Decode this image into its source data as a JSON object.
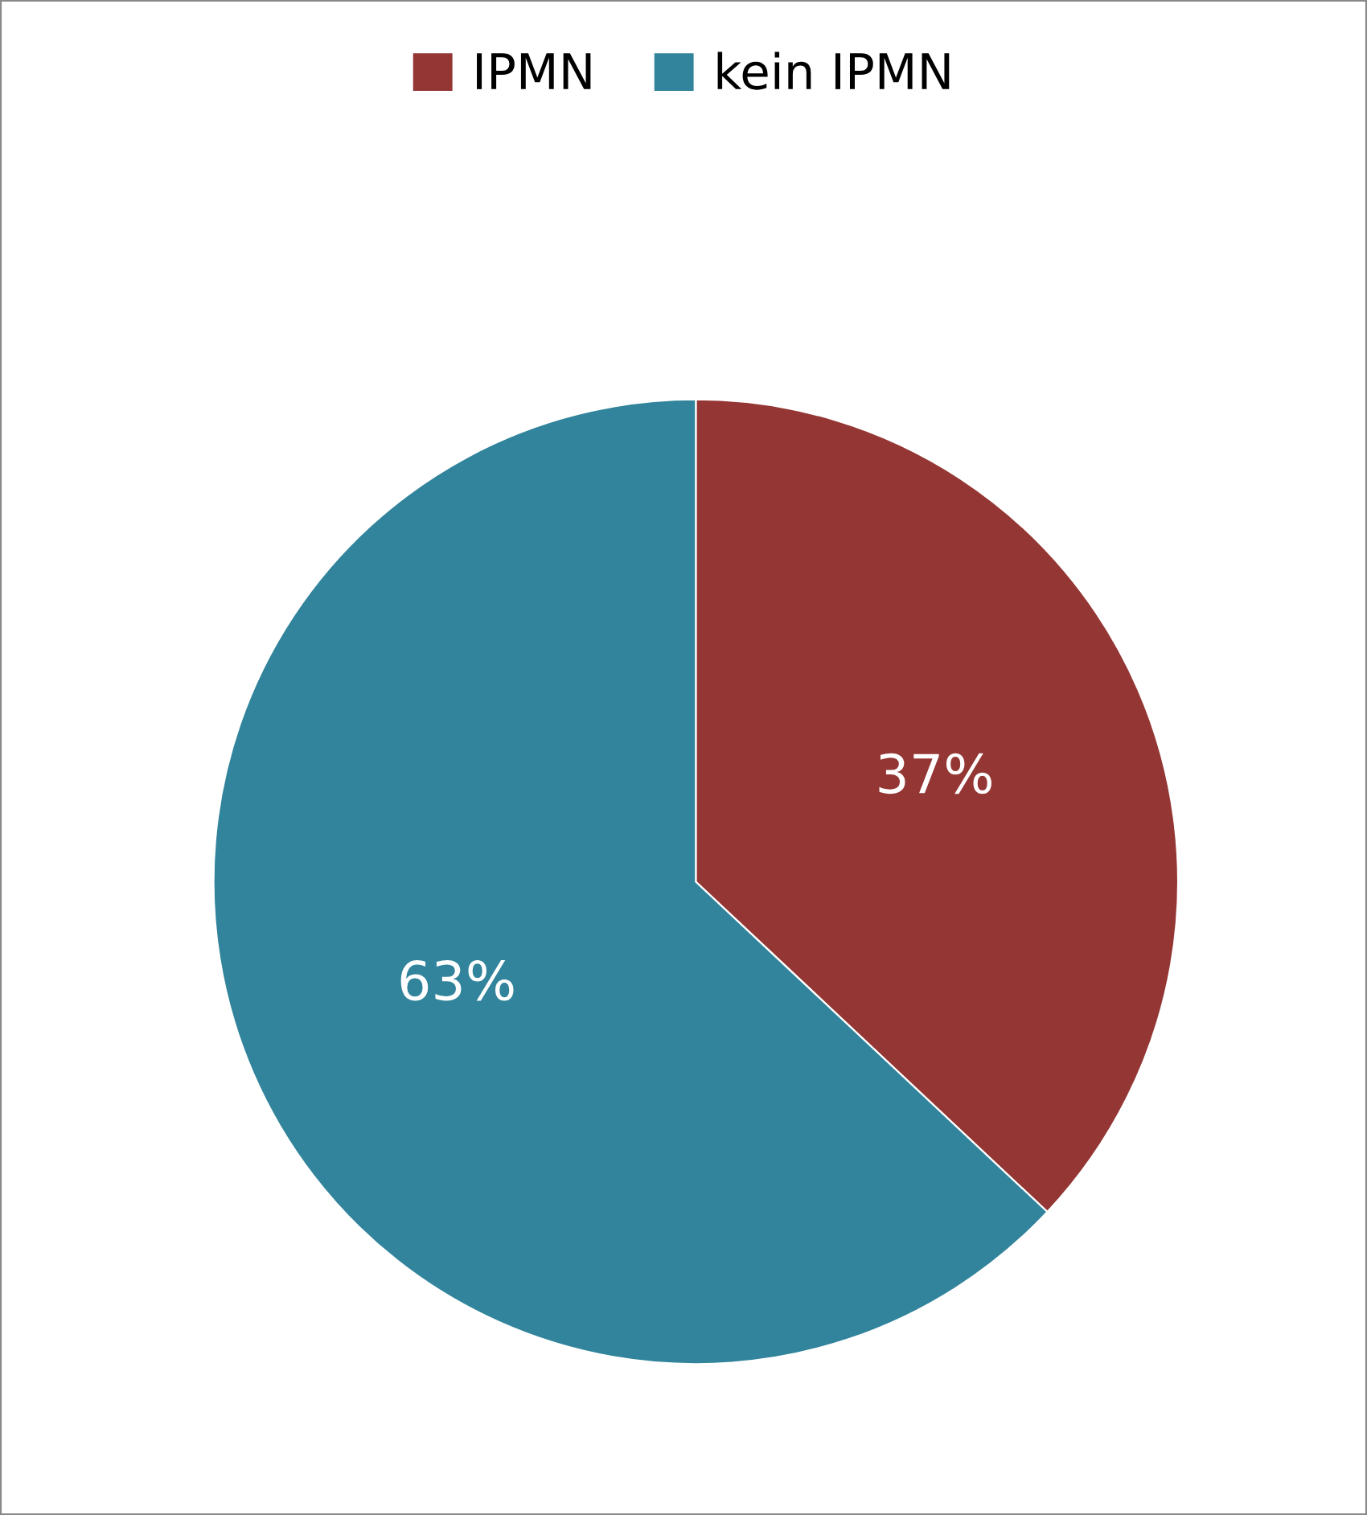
{
  "chart_data": {
    "type": "pie",
    "categories": [
      "IPMN",
      "kein IPMN"
    ],
    "values": [
      37,
      63
    ],
    "colors": [
      "#943634",
      "#31849b"
    ],
    "value_labels": [
      "37%",
      "63%"
    ],
    "legend": "top"
  }
}
